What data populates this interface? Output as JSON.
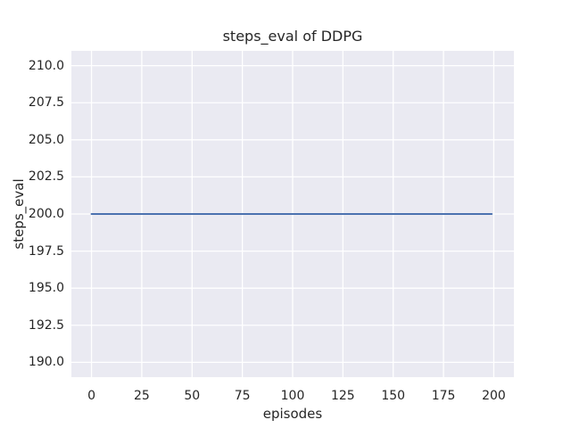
{
  "chart_data": {
    "type": "line",
    "title": "steps_eval of DDPG",
    "xlabel": "episodes",
    "ylabel": "steps_eval",
    "xlim": [
      -10,
      210
    ],
    "ylim": [
      189,
      211
    ],
    "xticks": [
      {
        "label": "0",
        "value": 0
      },
      {
        "label": "25",
        "value": 25
      },
      {
        "label": "50",
        "value": 50
      },
      {
        "label": "75",
        "value": 75
      },
      {
        "label": "100",
        "value": 100
      },
      {
        "label": "125",
        "value": 125
      },
      {
        "label": "150",
        "value": 150
      },
      {
        "label": "175",
        "value": 175
      },
      {
        "label": "200",
        "value": 200
      }
    ],
    "yticks": [
      {
        "label": "210.0",
        "value": 210.0
      },
      {
        "label": "207.5",
        "value": 207.5
      },
      {
        "label": "205.0",
        "value": 205.0
      },
      {
        "label": "202.5",
        "value": 202.5
      },
      {
        "label": "200.0",
        "value": 200.0
      },
      {
        "label": "197.5",
        "value": 197.5
      },
      {
        "label": "195.0",
        "value": 195.0
      },
      {
        "label": "192.5",
        "value": 192.5
      },
      {
        "label": "190.0",
        "value": 190.0
      }
    ],
    "grid": true,
    "legend": "none",
    "series": [
      {
        "name": "DDPG steps_eval",
        "x": [
          0,
          199
        ],
        "y": [
          200,
          200
        ],
        "note": "constant value 200 for every episode from 0 to 199"
      }
    ],
    "colors": {
      "axes_background": "#EAEAF2",
      "gridline": "#FFFFFF",
      "series_line": "#4C72B0",
      "text": "#262626",
      "figure_background": "#FFFFFF"
    }
  }
}
